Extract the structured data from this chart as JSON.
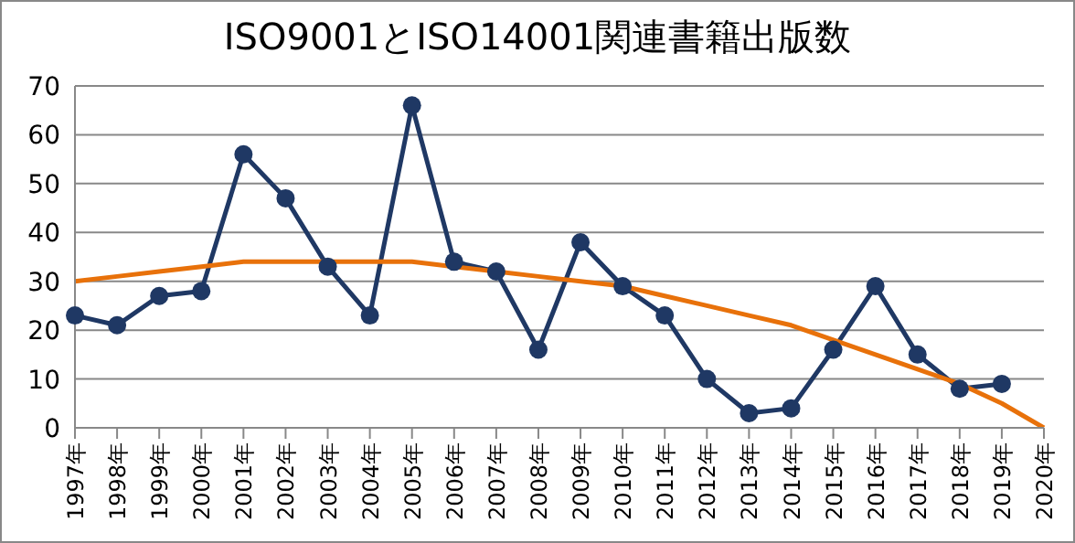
{
  "chart_data": {
    "type": "line",
    "title": "ISO9001とISO14001関連書籍出版数",
    "categories": [
      "1997年",
      "1998年",
      "1999年",
      "2000年",
      "2001年",
      "2002年",
      "2003年",
      "2004年",
      "2005年",
      "2006年",
      "2007年",
      "2008年",
      "2009年",
      "2010年",
      "2011年",
      "2012年",
      "2013年",
      "2014年",
      "2015年",
      "2016年",
      "2017年",
      "2018年",
      "2019年",
      "2020年"
    ],
    "series": [
      {
        "color": "#1f3864",
        "marker": "circle",
        "values": [
          23,
          21,
          27,
          28,
          56,
          47,
          33,
          23,
          66,
          34,
          32,
          16,
          38,
          29,
          23,
          10,
          3,
          4,
          16,
          29,
          15,
          8,
          9,
          null
        ]
      },
      {
        "color": "#e8710a",
        "marker": "none",
        "values": [
          30,
          31,
          32,
          33,
          34,
          34,
          34,
          34,
          34,
          33,
          32,
          31,
          30,
          29,
          27,
          25,
          23,
          21,
          18,
          15,
          12,
          9,
          5,
          0
        ]
      }
    ],
    "ylim": [
      0,
      70
    ],
    "yticks": [
      0,
      10,
      20,
      30,
      40,
      50,
      60,
      70
    ],
    "grid": "y",
    "legend": false
  }
}
